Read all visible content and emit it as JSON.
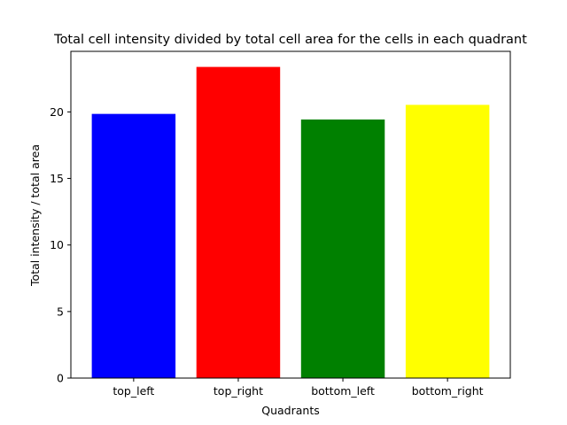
{
  "chart_data": {
    "type": "bar",
    "title": "Total cell intensity divided by total cell area for the cells in each quadrant",
    "xlabel": "Quadrants",
    "ylabel": "Total intensity / total area",
    "categories": [
      "top_left",
      "top_right",
      "bottom_left",
      "bottom_right"
    ],
    "values": [
      19.85,
      23.38,
      19.43,
      20.53
    ],
    "colors": [
      "#0000ff",
      "#ff0000",
      "#008000",
      "#ffff00"
    ],
    "ylim": [
      0,
      24.55
    ],
    "yticks": [
      0,
      5,
      10,
      15,
      20
    ],
    "grid": false,
    "legend": "none"
  }
}
